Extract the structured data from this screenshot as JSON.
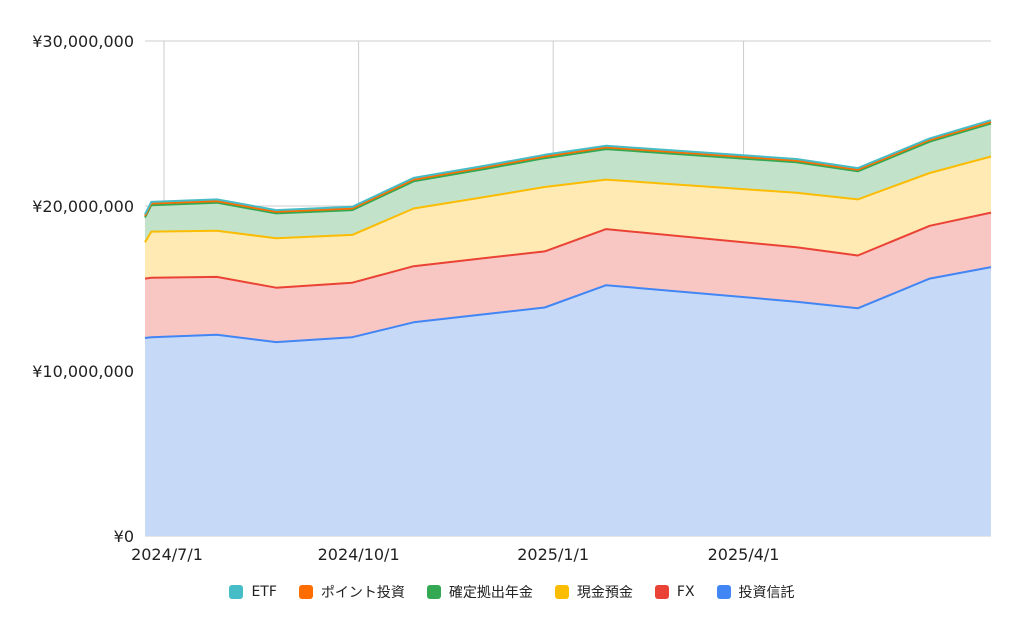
{
  "chart_data": {
    "type": "area",
    "stacked": true,
    "x": [
      "2024-06-22",
      "2024-06-25",
      "2024-08-01",
      "2024-09-01",
      "2024-09-30",
      "2024-10-31",
      "2024-11-30",
      "2024-12-31",
      "2025-01-31",
      "2025-05-31",
      "2025-06-30",
      "2025-07-31",
      "2025-08-31"
    ],
    "x_ticks": [
      {
        "date": "2024-07-01",
        "label": "2024/7/1"
      },
      {
        "date": "2024-10-01",
        "label": "2024/10/1"
      },
      {
        "date": "2025-01-01",
        "label": "2025/1/1"
      },
      {
        "date": "2025-04-01",
        "label": "2025/4/1"
      }
    ],
    "x_dates_for_drawing": [
      "2024-06-22",
      "2024-06-25",
      "2024-07-26",
      "2024-08-23",
      "2024-09-28",
      "2024-10-27",
      "2024-11-30",
      "2024-12-28",
      "2025-01-26",
      "2025-04-26",
      "2025-05-25",
      "2025-06-28",
      "2025-07-27"
    ],
    "ylim": [
      0,
      30000000
    ],
    "y_ticks": [
      {
        "value": 0,
        "label": "¥0"
      },
      {
        "value": 10000000,
        "label": "¥10,000,000"
      },
      {
        "value": 20000000,
        "label": "¥20,000,000"
      },
      {
        "value": 30000000,
        "label": "¥30,000,000"
      }
    ],
    "grid": true,
    "legend_position": "bottom",
    "series": [
      {
        "name": "投資信託",
        "color": "#4285f4",
        "fill": "#c6daf8",
        "values": [
          12000000,
          12050000,
          12200000,
          11750000,
          12050000,
          12950000,
          13450000,
          13850000,
          15200000,
          14200000,
          13800000,
          15600000,
          16300000
        ]
      },
      {
        "name": "FX",
        "color": "#ea4335",
        "fill": "#f8c7c3",
        "values": [
          3600000,
          3600000,
          3500000,
          3300000,
          3300000,
          3400000,
          3400000,
          3400000,
          3400000,
          3300000,
          3200000,
          3200000,
          3300000
        ]
      },
      {
        "name": "現金預金",
        "color": "#fbbc04",
        "fill": "#feeab2",
        "values": [
          2200000,
          2800000,
          2800000,
          3000000,
          2900000,
          3500000,
          3700000,
          3900000,
          3000000,
          3300000,
          3400000,
          3200000,
          3400000
        ]
      },
      {
        "name": "確定拠出年金",
        "color": "#34a853",
        "fill": "#c2e3ca",
        "values": [
          1500000,
          1600000,
          1700000,
          1500000,
          1500000,
          1650000,
          1700000,
          1750000,
          1850000,
          1850000,
          1700000,
          1900000,
          2000000
        ]
      },
      {
        "name": "ポイント投資",
        "color": "#ff6d01",
        "fill": "#ffd3b3",
        "values": [
          100000,
          100000,
          100000,
          100000,
          100000,
          100000,
          100000,
          100000,
          100000,
          100000,
          100000,
          100000,
          100000
        ]
      },
      {
        "name": "ETF",
        "color": "#46bdc6",
        "fill": "#c7ebee",
        "values": [
          100000,
          100000,
          100000,
          100000,
          100000,
          100000,
          100000,
          100000,
          100000,
          100000,
          100000,
          100000,
          100000
        ]
      }
    ],
    "legend_order": [
      "ETF",
      "ポイント投資",
      "確定拠出年金",
      "現金預金",
      "FX",
      "投資信託"
    ]
  }
}
